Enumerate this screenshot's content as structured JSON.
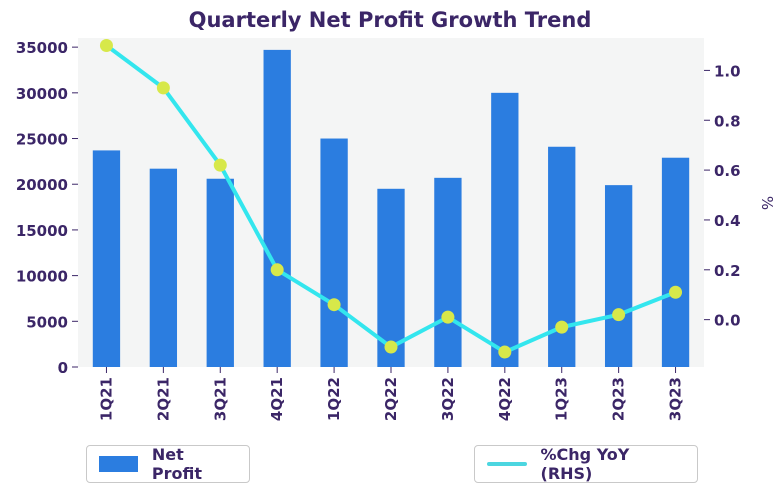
{
  "chart_data": {
    "type": "bar",
    "title": "Quarterly Net Profit Growth Trend",
    "categories": [
      "1Q21",
      "2Q21",
      "3Q21",
      "4Q21",
      "1Q22",
      "2Q22",
      "3Q22",
      "4Q22",
      "1Q23",
      "2Q23",
      "3Q23"
    ],
    "series": [
      {
        "name": "Net Profit",
        "type": "bar",
        "axis": "left",
        "values": [
          23700,
          21700,
          20600,
          34700,
          25000,
          19500,
          20700,
          30000,
          24100,
          19900,
          22900
        ]
      },
      {
        "name": "%Chg YoY (RHS)",
        "type": "line",
        "axis": "right",
        "values": [
          1.1,
          0.93,
          0.62,
          0.2,
          0.06,
          -0.11,
          0.01,
          -0.13,
          -0.03,
          0.02,
          0.11
        ]
      }
    ],
    "ylim_left": [
      0,
      36000
    ],
    "yticks_left": [
      "0",
      "5000",
      "10000",
      "15000",
      "20000",
      "25000",
      "30000",
      "35000"
    ],
    "ylim_right": [
      -0.19,
      1.13
    ],
    "yticks_right": [
      "0.0",
      "0.2",
      "0.4",
      "0.6",
      "0.8",
      "1.0"
    ],
    "ylabel_right": "%",
    "grid": false,
    "legend_placement": "bottom",
    "colors": {
      "bar": "#2b7de0",
      "line": "#33e6ee",
      "marker": "#d7e84a",
      "legend_line": "#4cd6e0",
      "plot_bg": "#f4f5f5",
      "text": "#3b2667"
    }
  }
}
